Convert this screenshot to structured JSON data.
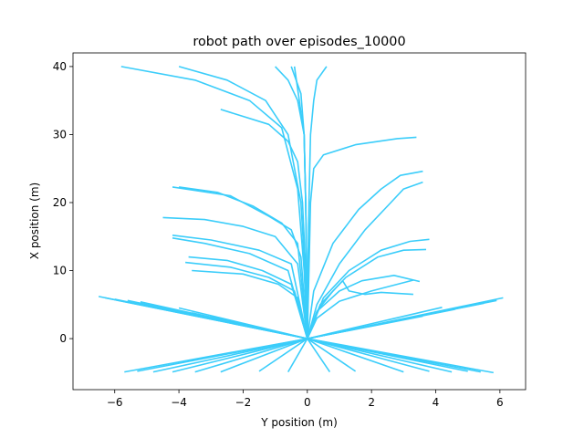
{
  "chart_data": {
    "type": "line",
    "title": "robot path over episodes_10000",
    "xlabel": "Y position (m)",
    "ylabel": "X position (m)",
    "xlim": [
      -7.3,
      6.8
    ],
    "ylim": [
      -7.5,
      42
    ],
    "xticks": [
      -6,
      -4,
      -2,
      0,
      2,
      4,
      6
    ],
    "yticks": [
      0,
      10,
      20,
      30,
      40
    ],
    "xtick_labels": [
      "−6",
      "−4",
      "−2",
      "0",
      "2",
      "4",
      "6"
    ],
    "ytick_labels": [
      "0",
      "10",
      "20",
      "30",
      "40"
    ],
    "grid": false,
    "legend": "none",
    "line_color": "#3bcdfa",
    "series": [
      {
        "x": [
          0,
          -0.05,
          -0.2,
          -0.6,
          -1.3,
          -2.5,
          -4.0
        ],
        "y": [
          0,
          8,
          20,
          30,
          35,
          38,
          40
        ]
      },
      {
        "x": [
          0,
          -0.1,
          -0.3,
          -0.8,
          -1.8,
          -3.5,
          -5.8
        ],
        "y": [
          0,
          10,
          22,
          31,
          35,
          38,
          40
        ]
      },
      {
        "x": [
          0,
          -0.05,
          -0.15,
          -0.3,
          -0.6,
          -1.2,
          -2.7
        ],
        "y": [
          0,
          10,
          20,
          26,
          29,
          31.5,
          33.7
        ]
      },
      {
        "x": [
          0,
          -0.02,
          -0.05,
          -0.1,
          -0.3,
          -0.6,
          -1.0
        ],
        "y": [
          0,
          10,
          20,
          30,
          35,
          38,
          40
        ]
      },
      {
        "x": [
          0,
          -0.02,
          -0.05,
          -0.1,
          -0.2,
          -0.5
        ],
        "y": [
          0,
          10,
          20,
          30,
          36,
          40
        ]
      },
      {
        "x": [
          0,
          0.02,
          0.05,
          0.1,
          0.2,
          0.3,
          0.6
        ],
        "y": [
          0,
          10,
          20,
          30,
          35,
          38,
          40
        ]
      },
      {
        "x": [
          0,
          -0.02,
          -0.05,
          -0.1,
          -0.4
        ],
        "y": [
          0,
          10,
          20,
          30,
          40
        ]
      },
      {
        "x": [
          0,
          0.05,
          0.1,
          0.2,
          0.5,
          1.5,
          2.8,
          3.4
        ],
        "y": [
          0,
          10,
          20,
          25,
          27,
          28.5,
          29.4,
          29.6
        ]
      },
      {
        "x": [
          0,
          0.2,
          0.8,
          1.6,
          2.3,
          2.9,
          3.6
        ],
        "y": [
          0,
          7,
          14,
          19,
          22,
          24,
          24.6
        ]
      },
      {
        "x": [
          0,
          0.3,
          1.0,
          1.8,
          2.6,
          3.0,
          3.6
        ],
        "y": [
          0,
          5,
          11,
          16,
          20,
          22,
          23
        ]
      },
      {
        "x": [
          0,
          -0.3,
          -0.8,
          -1.7,
          -2.8,
          -4.0
        ],
        "y": [
          0,
          14,
          17,
          19.5,
          21.5,
          22.3
        ]
      },
      {
        "x": [
          0,
          -0.2,
          -0.5,
          -1.2,
          -2.4,
          -4.2
        ],
        "y": [
          0,
          12,
          16,
          18,
          21,
          22.3
        ]
      },
      {
        "x": [
          0,
          -0.3,
          -1.0,
          -2.0,
          -3.2,
          -4.5
        ],
        "y": [
          0,
          11,
          15,
          16.5,
          17.5,
          17.8
        ]
      },
      {
        "x": [
          0,
          -0.5,
          -1.5,
          -3.0,
          -4.2
        ],
        "y": [
          0,
          11,
          13,
          14.5,
          15.2
        ]
      },
      {
        "x": [
          0,
          -0.6,
          -1.8,
          -3.2,
          -4.2
        ],
        "y": [
          0,
          10,
          12.5,
          14,
          14.8
        ]
      },
      {
        "x": [
          0,
          -0.5,
          -1.4,
          -2.5,
          -3.7
        ],
        "y": [
          0,
          8,
          10,
          11.5,
          12
        ]
      },
      {
        "x": [
          0,
          -0.4,
          -1.2,
          -2.4,
          -3.8
        ],
        "y": [
          0,
          7,
          9,
          10.5,
          11.2
        ]
      },
      {
        "x": [
          0,
          -0.3,
          -0.9,
          -2.0,
          -3.6
        ],
        "y": [
          0,
          6,
          8,
          9.5,
          10
        ]
      },
      {
        "x": [
          0,
          0.5,
          1.3,
          2.3,
          3.2,
          3.8
        ],
        "y": [
          0,
          6,
          10,
          13,
          14.3,
          14.6
        ]
      },
      {
        "x": [
          0,
          0.4,
          1.2,
          2.2,
          3.0,
          3.7
        ],
        "y": [
          0,
          5,
          9,
          12,
          13,
          13.1
        ]
      },
      {
        "x": [
          0,
          0.3,
          0.8,
          1.1,
          1.3,
          1.8,
          2.3,
          3.3
        ],
        "y": [
          0,
          4,
          7,
          8.5,
          7,
          6.5,
          6.8,
          6.5
        ]
      },
      {
        "x": [
          0,
          0.3,
          1.0,
          1.7,
          2.7,
          3.5
        ],
        "y": [
          0,
          4,
          7,
          8.5,
          9.3,
          8.4
        ]
      },
      {
        "x": [
          0,
          0.3,
          1.0,
          2.0,
          3.3
        ],
        "y": [
          0,
          3,
          5.5,
          7.0,
          8.6
        ]
      },
      {
        "x": [
          -6.5,
          0,
          6.1
        ],
        "y": [
          6.2,
          0,
          6.0
        ]
      },
      {
        "x": [
          -6.3,
          0,
          5.9
        ],
        "y": [
          6.0,
          0,
          5.6
        ]
      },
      {
        "x": [
          -6.0,
          0,
          5.5
        ],
        "y": [
          5.8,
          0,
          5.2
        ]
      },
      {
        "x": [
          -5.6,
          0,
          5.0
        ],
        "y": [
          5.6,
          0,
          4.8
        ]
      },
      {
        "x": [
          -5.2,
          0,
          4.6
        ],
        "y": [
          5.4,
          0,
          4.3
        ]
      },
      {
        "x": [
          -5.7,
          0,
          5.8
        ],
        "y": [
          -4.9,
          0,
          -5.0
        ]
      },
      {
        "x": [
          -5.3,
          0,
          5.4
        ],
        "y": [
          -4.8,
          0,
          -4.9
        ]
      },
      {
        "x": [
          -4.8,
          0,
          5.0
        ],
        "y": [
          -4.9,
          0,
          -4.8
        ]
      },
      {
        "x": [
          -4.2,
          0,
          4.5
        ],
        "y": [
          -4.9,
          0,
          -4.9
        ]
      },
      {
        "x": [
          -3.5,
          0,
          3.8
        ],
        "y": [
          -4.9,
          0,
          -4.8
        ]
      },
      {
        "x": [
          -2.7,
          0,
          3.0
        ],
        "y": [
          -4.9,
          0,
          -4.9
        ]
      },
      {
        "x": [
          -1.5,
          0,
          1.5
        ],
        "y": [
          -4.8,
          0,
          -4.8
        ]
      },
      {
        "x": [
          -0.6,
          0,
          0.7
        ],
        "y": [
          -4.9,
          0,
          -4.9
        ]
      },
      {
        "x": [
          -4.0,
          0,
          4.2
        ],
        "y": [
          4.5,
          0,
          4.6
        ]
      },
      {
        "x": [
          -3.6,
          0,
          3.6
        ],
        "y": [
          3.8,
          0,
          3.3
        ]
      },
      {
        "x": [
          -3.0,
          0,
          3.0
        ],
        "y": [
          3.2,
          0,
          2.8
        ]
      }
    ]
  }
}
